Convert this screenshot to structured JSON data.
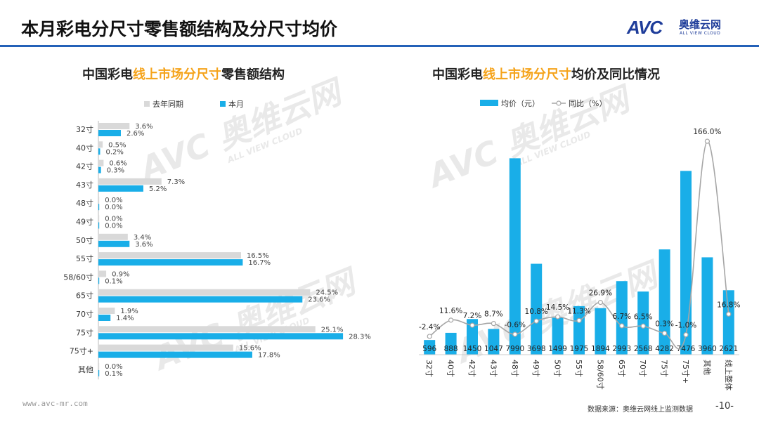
{
  "page": {
    "title": "本月彩电分尺寸零售额结构及分尺寸均价",
    "logo_brand": "AVC",
    "logo_cn": "奥维云网",
    "logo_en": "ALL VIEW CLOUD",
    "footer_url": "www.avc-mr.com",
    "footer_source": "数据来源：奥维云网线上监测数据",
    "page_number": "-10-",
    "watermark_cn": "奥维云网",
    "watermark_en": "ALL VIEW CLOUD",
    "colors": {
      "accent": "#19aee8",
      "grey_bar": "#d9d9d9",
      "highlight": "#f5a31a",
      "rule": "#2461b8",
      "line": "#a6a6a6"
    }
  },
  "left_chart": {
    "title_pre": "中国彩电",
    "title_hl": "线上市场分尺寸",
    "title_post": "零售额结构"
  },
  "right_chart": {
    "title_pre": "中国彩电",
    "title_hl": "线上市场分尺寸",
    "title_post": "均价及同比情况"
  },
  "chart_data": [
    {
      "type": "bar",
      "orientation": "horizontal",
      "title": "中国彩电线上市场分尺寸零售额结构",
      "categories": [
        "32寸",
        "40寸",
        "42寸",
        "43寸",
        "48寸",
        "49寸",
        "50寸",
        "55寸",
        "58/60寸",
        "65寸",
        "70寸",
        "75寸",
        "75寸+",
        "其他"
      ],
      "series": [
        {
          "name": "去年同期",
          "color": "#d9d9d9",
          "values": [
            3.6,
            0.5,
            0.6,
            7.3,
            0.0,
            0.0,
            3.4,
            16.5,
            0.9,
            24.5,
            1.9,
            25.1,
            15.6,
            0.0
          ]
        },
        {
          "name": "本月",
          "color": "#19aee8",
          "values": [
            2.6,
            0.2,
            0.3,
            5.2,
            0.0,
            0.0,
            3.6,
            16.7,
            0.1,
            23.6,
            1.4,
            28.3,
            17.8,
            0.1
          ]
        }
      ],
      "unit": "%",
      "xlim": [
        0,
        30
      ],
      "legend": "top"
    },
    {
      "type": "bar+line",
      "title": "中国彩电线上市场分尺寸均价及同比情况",
      "categories": [
        "32寸",
        "40寸",
        "42寸",
        "43寸",
        "48寸",
        "49寸",
        "50寸",
        "55寸",
        "58/60寸",
        "65寸",
        "70寸",
        "75寸",
        "75寸+",
        "其他",
        "线上整体"
      ],
      "bar_series": {
        "name": "均价（元）",
        "color": "#19aee8",
        "values": [
          596,
          888,
          1450,
          1047,
          7990,
          3698,
          1499,
          1975,
          1894,
          2993,
          2568,
          4282,
          7476,
          3960,
          2621
        ]
      },
      "line_series": {
        "name": "同比（%）",
        "color": "#a6a6a6",
        "values": [
          -2.4,
          11.6,
          7.2,
          8.7,
          -0.6,
          10.8,
          14.5,
          11.3,
          26.9,
          6.7,
          6.5,
          0.3,
          -1.0,
          166.0,
          16.8
        ]
      },
      "legend": "top"
    }
  ]
}
